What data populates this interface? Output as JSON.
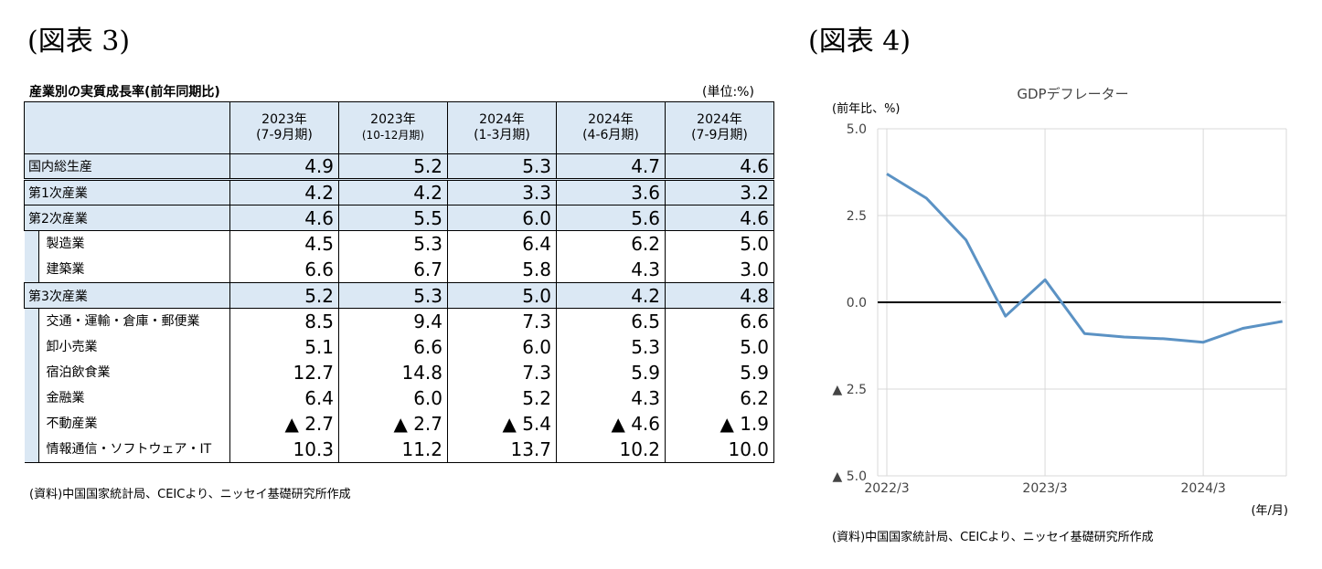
{
  "figure3": {
    "label": "(図表 3)",
    "title": "産業別の実質成長率(前年同期比)",
    "unit": "(単位:%)",
    "columns": [
      {
        "year": "2023年",
        "period": "(7-9月期)"
      },
      {
        "year": "2023年",
        "period": "(10-12月期)"
      },
      {
        "year": "2024年",
        "period": "(1-3月期)"
      },
      {
        "year": "2024年",
        "period": "(4-6月期)"
      },
      {
        "year": "2024年",
        "period": "(7-9月期)"
      }
    ],
    "rows": [
      {
        "label": "国内総生産",
        "values": [
          "4.9",
          "5.2",
          "5.3",
          "4.7",
          "4.6"
        ]
      },
      {
        "label": "第1次産業",
        "values": [
          "4.2",
          "4.2",
          "3.3",
          "3.6",
          "3.2"
        ]
      },
      {
        "label": "第2次産業",
        "values": [
          "4.6",
          "5.5",
          "6.0",
          "5.6",
          "4.6"
        ]
      },
      {
        "label": "製造業",
        "values": [
          "4.5",
          "5.3",
          "6.4",
          "6.2",
          "5.0"
        ]
      },
      {
        "label": "建築業",
        "values": [
          "6.6",
          "6.7",
          "5.8",
          "4.3",
          "3.0"
        ]
      },
      {
        "label": "第3次産業",
        "values": [
          "5.2",
          "5.3",
          "5.0",
          "4.2",
          "4.8"
        ]
      },
      {
        "label": "交通・運輸・倉庫・郵便業",
        "values": [
          "8.5",
          "9.4",
          "7.3",
          "6.5",
          "6.6"
        ]
      },
      {
        "label": "卸小売業",
        "values": [
          "5.1",
          "6.6",
          "6.0",
          "5.3",
          "5.0"
        ]
      },
      {
        "label": "宿泊飲食業",
        "values": [
          "12.7",
          "14.8",
          "7.3",
          "5.9",
          "5.9"
        ]
      },
      {
        "label": "金融業",
        "values": [
          "6.4",
          "6.0",
          "5.2",
          "4.3",
          "6.2"
        ]
      },
      {
        "label": "不動産業",
        "values": [
          "▲ 2.7",
          "▲ 2.7",
          "▲ 5.4",
          "▲ 4.6",
          "▲ 1.9"
        ]
      },
      {
        "label": "情報通信・ソフトウェア・IT",
        "values": [
          "10.3",
          "11.2",
          "13.7",
          "10.2",
          "10.0"
        ]
      }
    ],
    "source": "(資料)中国国家統計局、CEICより、ニッセイ基礎研究所作成"
  },
  "figure4": {
    "label": "(図表 4)",
    "source": "(資料)中国国家統計局、CEICより、ニッセイ基礎研究所作成"
  },
  "chart_data": {
    "type": "line",
    "title": "GDPデフレーター",
    "ylabel": "(前年比、%)",
    "xlabel": "(年/月)",
    "ylim": [
      -5.0,
      5.0
    ],
    "yticks": [
      5.0,
      2.5,
      0.0,
      -2.5,
      -5.0
    ],
    "ytick_labels": [
      "5.0",
      "2.5",
      "0.0",
      "▲ 2.5",
      "▲ 5.0"
    ],
    "x_tick_labels": [
      "2022/3",
      "2023/3",
      "2024/3"
    ],
    "x": [
      "2022/3",
      "2022/6",
      "2022/9",
      "2022/12",
      "2023/3",
      "2023/6",
      "2023/9",
      "2023/12",
      "2024/3",
      "2024/6",
      "2024/9"
    ],
    "series": [
      {
        "name": "GDPデフレーター",
        "color": "#5b92c4",
        "values": [
          3.7,
          3.0,
          1.8,
          -0.4,
          0.65,
          -0.9,
          -1.0,
          -1.05,
          -1.15,
          -0.75,
          -0.55
        ]
      }
    ],
    "zero_line": true,
    "grid": true
  }
}
